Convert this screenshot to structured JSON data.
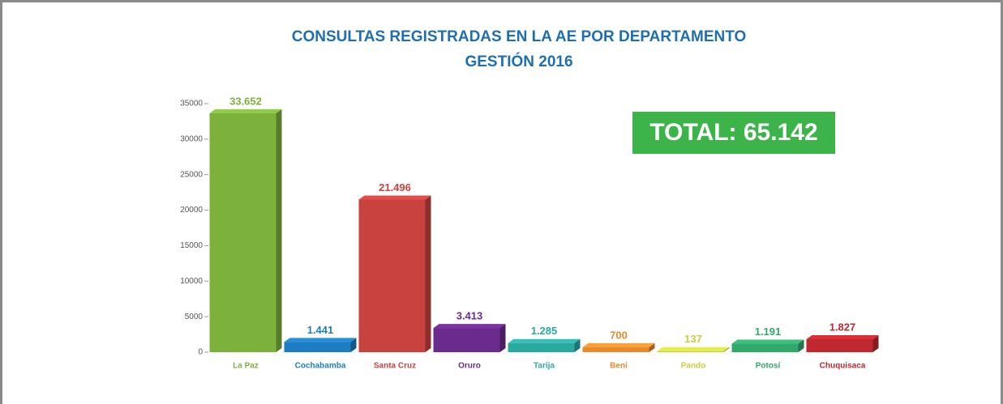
{
  "chart_data": {
    "type": "bar3d",
    "title": "CONSULTAS REGISTRADAS EN LA AE POR DEPARTAMENTO",
    "subtitle": "GESTIÓN 2016",
    "annotation": "TOTAL: 65.142",
    "categories": [
      "La Paz",
      "Cochabamba",
      "Santa Cruz",
      "Oruro",
      "Tarija",
      "Beni",
      "Pando",
      "Potosí",
      "Chuquisaca"
    ],
    "values": [
      33652,
      1441,
      21496,
      3413,
      1285,
      700,
      137,
      1191,
      1827
    ],
    "value_labels": [
      "33.652",
      "1.441",
      "21.496",
      "3.413",
      "1.285",
      "700",
      "137",
      "1.191",
      "1.827"
    ],
    "colors": [
      "#7cb23c",
      "#1f7cc2",
      "#c8433f",
      "#6b2b8e",
      "#2aa9a1",
      "#e88a2c",
      "#c8cf3c",
      "#31a96b",
      "#c0282f"
    ],
    "ylim": [
      0,
      35000
    ],
    "yticks": [
      0,
      5000,
      10000,
      15000,
      20000,
      25000,
      30000,
      35000
    ]
  }
}
